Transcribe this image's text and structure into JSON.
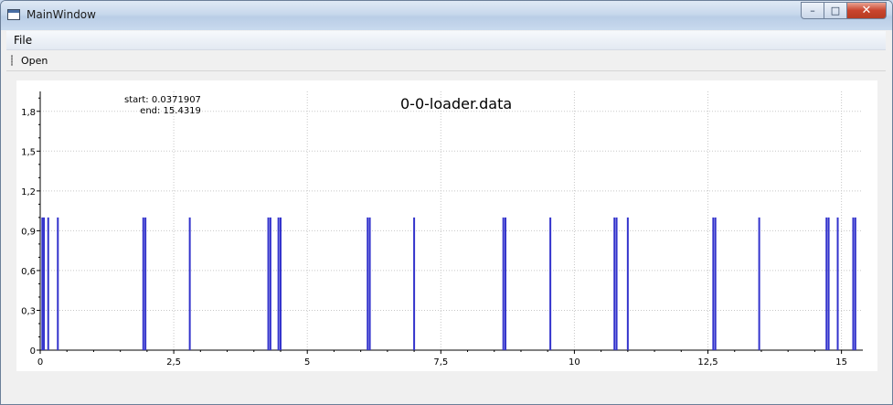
{
  "window": {
    "title": "MainWindow",
    "minimize": "–",
    "maximize": "□",
    "close": "✕"
  },
  "menubar": {
    "file": "File"
  },
  "toolbar": {
    "open": "Open"
  },
  "plot": {
    "start_label": "start: 0.0371907",
    "end_label": "end: 15.4319",
    "title": "0-0-loader.data"
  },
  "chart_data": {
    "type": "bar",
    "title": "0-0-loader.data",
    "xlabel": "",
    "ylabel": "",
    "xlim": [
      0,
      15.4
    ],
    "ylim": [
      0,
      1.95
    ],
    "grid": true,
    "xticks": [
      "0",
      "2,5",
      "5",
      "7,5",
      "10",
      "12,5",
      "15"
    ],
    "xtick_values": [
      0,
      2.5,
      5,
      7.5,
      10,
      12.5,
      15
    ],
    "yticks": [
      "0",
      "0,3",
      "0,6",
      "0,9",
      "1,2",
      "1,5",
      "1,8"
    ],
    "ytick_values": [
      0,
      0.3,
      0.6,
      0.9,
      1.2,
      1.5,
      1.8
    ],
    "color": "#3333cc",
    "x": [
      0.04,
      0.07,
      0.15,
      0.33,
      1.93,
      1.97,
      2.8,
      4.27,
      4.31,
      4.46,
      4.5,
      6.13,
      6.17,
      7.0,
      8.67,
      8.71,
      9.55,
      10.75,
      10.79,
      11.0,
      12.6,
      12.64,
      13.46,
      14.72,
      14.76,
      14.93,
      15.22,
      15.26
    ],
    "values": [
      1,
      1,
      1,
      1,
      1,
      1,
      1,
      1,
      1,
      1,
      1,
      1,
      1,
      1,
      1,
      1,
      1,
      1,
      1,
      1,
      1,
      1,
      1,
      1,
      1,
      1,
      1,
      1
    ]
  }
}
